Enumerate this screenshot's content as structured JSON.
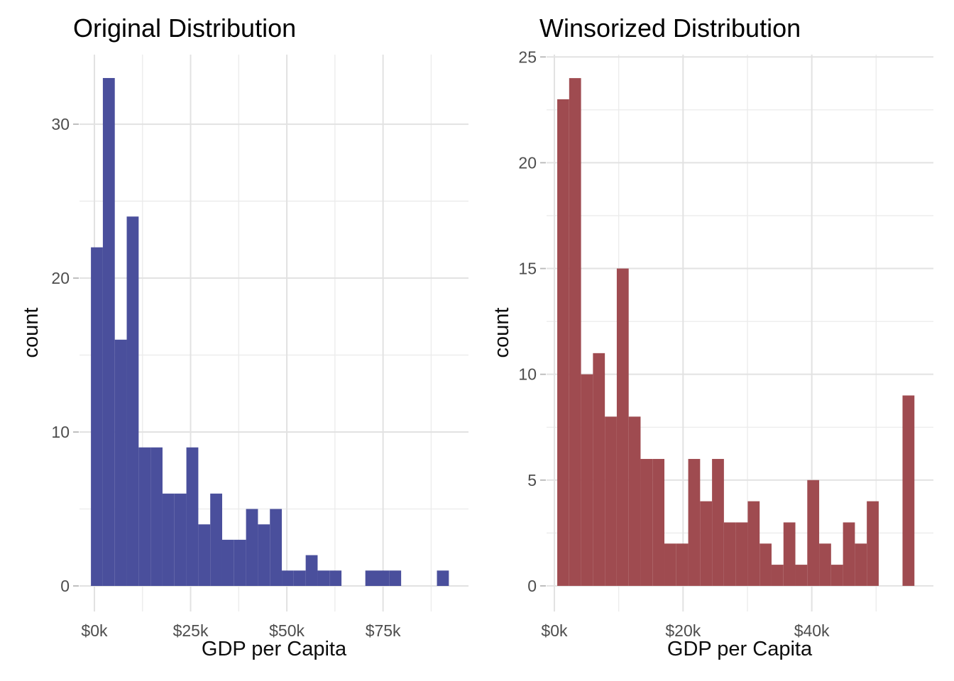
{
  "figure_title": "GDP per Capita histograms, original vs winsorized",
  "styles": {
    "background": "#ffffff",
    "grid_major_color": "#e2e2e2",
    "grid_minor_color": "#ebebeb",
    "axis_tick_color": "#b8b8b8",
    "tick_label_color": "#4d4d4d",
    "title_color": "#000000",
    "original_bar_color": "#4a4f9c",
    "winsorized_bar_color": "#9f4b50"
  },
  "chart_data": [
    {
      "type": "bar",
      "subtype": "histogram",
      "title": "Original Distribution",
      "xlabel": "GDP per Capita",
      "ylabel": "count",
      "x_unit": "thousands of dollars",
      "bar_color": "#4a4f9c",
      "bins": {
        "start": -0.9,
        "width": 3.1
      },
      "counts": [
        22,
        33,
        16,
        24,
        9,
        9,
        6,
        6,
        9,
        4,
        6,
        3,
        3,
        5,
        4,
        5,
        1,
        1,
        2,
        1,
        1,
        0,
        0,
        1,
        1,
        1,
        0,
        0,
        0,
        1
      ],
      "x_ticks": [
        {
          "v": 0,
          "label": "$0k"
        },
        {
          "v": 25,
          "label": "$25k"
        },
        {
          "v": 50,
          "label": "$50k"
        },
        {
          "v": 75,
          "label": "$75k"
        }
      ],
      "x_minor": [
        12.5,
        37.5,
        62.5,
        87.5
      ],
      "y_ticks": [
        {
          "v": 0,
          "label": "0"
        },
        {
          "v": 10,
          "label": "10"
        },
        {
          "v": 20,
          "label": "20"
        },
        {
          "v": 30,
          "label": "30"
        }
      ],
      "y_minor": [
        5,
        15,
        25
      ],
      "xlim": [
        -3.87,
        97.2
      ],
      "ylim": [
        -1.66,
        34.52
      ],
      "grid": true,
      "legend": "none"
    },
    {
      "type": "bar",
      "subtype": "histogram",
      "title": "Winsorized Distribution",
      "xlabel": "GDP per Capita",
      "ylabel": "count",
      "x_unit": "thousands of dollars",
      "bar_color": "#9f4b50",
      "bins": {
        "start": 0.45,
        "width": 1.85
      },
      "counts": [
        23,
        24,
        10,
        11,
        8,
        15,
        8,
        6,
        6,
        2,
        2,
        6,
        4,
        6,
        3,
        3,
        4,
        2,
        1,
        3,
        1,
        5,
        2,
        1,
        3,
        2,
        4,
        0,
        0,
        9
      ],
      "x_ticks": [
        {
          "v": 0,
          "label": "$0k"
        },
        {
          "v": 20,
          "label": "$20k"
        },
        {
          "v": 40,
          "label": "$40k"
        }
      ],
      "x_minor": [
        10,
        30,
        50
      ],
      "y_ticks": [
        {
          "v": 0,
          "label": "0"
        },
        {
          "v": 5,
          "label": "5"
        },
        {
          "v": 10,
          "label": "10"
        },
        {
          "v": 15,
          "label": "15"
        },
        {
          "v": 20,
          "label": "20"
        },
        {
          "v": 25,
          "label": "25"
        }
      ],
      "y_minor": [
        2.5,
        7.5,
        12.5,
        17.5,
        22.5
      ],
      "xlim": [
        -1.21,
        58.9
      ],
      "ylim": [
        -1.21,
        25.11
      ],
      "grid": true,
      "legend": "none"
    }
  ]
}
